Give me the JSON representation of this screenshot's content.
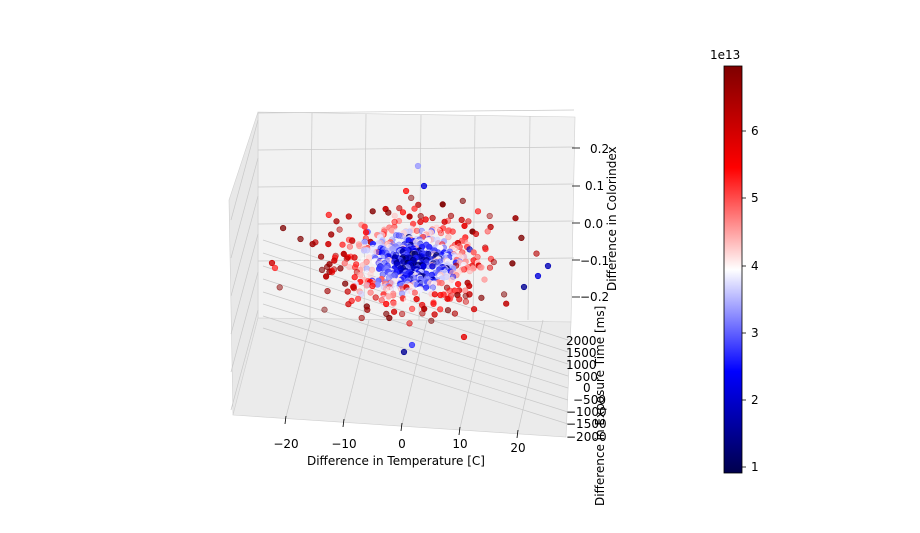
{
  "chart_data": {
    "type": "scatter",
    "projection": "3d",
    "title": "",
    "xlabel": "Difference in Temperature [C]",
    "ylabel": "Difference in Exposure Time [ms]",
    "zlabel": "Difference in Colorindex",
    "x_ticks": [
      "−20",
      "−10",
      "0",
      "10",
      "20"
    ],
    "y_ticks": [
      "2000",
      "1500",
      "1000",
      "500",
      "0",
      "−500",
      "−1000",
      "−1500",
      "−2000"
    ],
    "z_ticks": [
      "0.2",
      "0.1",
      "0.0",
      "−0.1",
      "−0.2"
    ],
    "grid": true,
    "colormap": "seismic",
    "colorbar": {
      "ticks": [
        "1",
        "2",
        "3",
        "4",
        "5",
        "6"
      ],
      "offset_label": "1e13",
      "range": [
        0.9,
        6.95
      ]
    },
    "point_count": 700,
    "point_colors": {
      "low": "#00004c",
      "mid": "#ffffff",
      "high": "#7f0000"
    }
  }
}
